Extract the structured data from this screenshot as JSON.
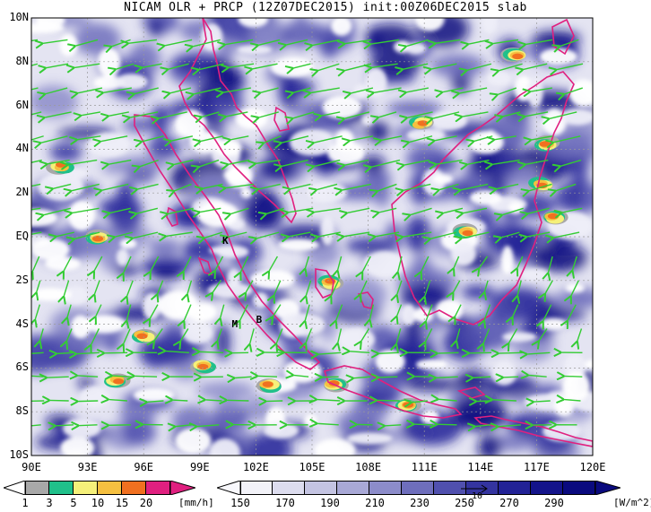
{
  "title": "NICAM OLR + PRCP (12Z07DEC2015) init:00Z06DEC2015 slab",
  "map": {
    "lat_labels": [
      "10N",
      "8N",
      "6N",
      "4N",
      "2N",
      "EQ",
      "2S",
      "4S",
      "6S",
      "8S",
      "10S"
    ],
    "lon_labels": [
      "90E",
      "93E",
      "96E",
      "99E",
      "102E",
      "105E",
      "108E",
      "111E",
      "114E",
      "117E",
      "120E"
    ],
    "stations": [
      {
        "name": "K",
        "lon": 100.4,
        "lat": -0.2
      },
      {
        "name": "M",
        "lon": 100.9,
        "lat": -4.0
      },
      {
        "name": "B",
        "lon": 102.2,
        "lat": -3.8
      }
    ],
    "colors": {
      "coast": "#e0207f",
      "wind": "#33cc33",
      "olr_dark": "#1a1a8c",
      "grid": "#9a9a9a"
    }
  },
  "precip_legend": {
    "ticks": [
      "1",
      "3",
      "5",
      "10",
      "15",
      "20"
    ],
    "unit": "[mm/h]",
    "colors": [
      "#a8a8a8",
      "#20c08a",
      "#f5f07a",
      "#f5c040",
      "#f07020",
      "#e02080"
    ]
  },
  "olr_legend": {
    "ticks": [
      "150",
      "170",
      "190",
      "210",
      "230",
      "250",
      "270",
      "290"
    ],
    "unit": "[W/m^2]",
    "colors": [
      "#f2f2f8",
      "#dcdcee",
      "#c4c4e2",
      "#a8a8d6",
      "#8c8cca",
      "#6e6ebc",
      "#5050ae",
      "#3434a0",
      "#222296",
      "#14148a",
      "#0a0a7e"
    ],
    "vector_ref_label": "10"
  }
}
